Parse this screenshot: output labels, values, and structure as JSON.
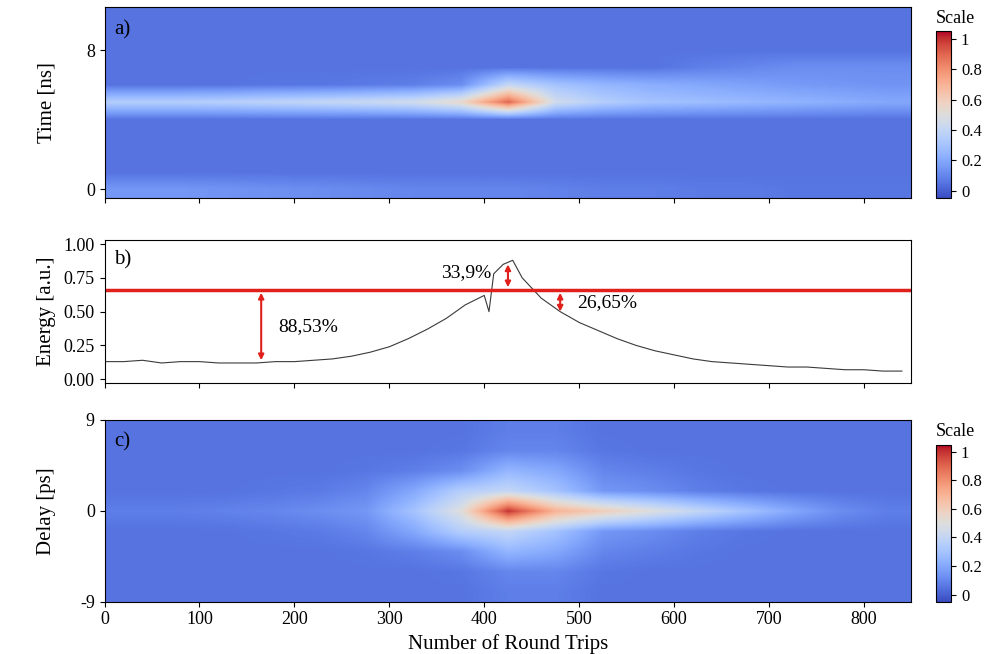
{
  "chart_data": [
    {
      "type": "heatmap",
      "label": "a)",
      "y_label": "Time [ns]",
      "x": [
        25,
        75,
        125,
        175,
        225,
        275,
        325,
        375,
        425,
        475,
        525,
        575,
        625,
        675,
        725,
        775,
        825
      ],
      "y": [
        0,
        1,
        2,
        3,
        4,
        5,
        6,
        7,
        8,
        9,
        10
      ],
      "cells": [
        [
          0.15,
          0.15,
          0.14,
          0.13,
          0.12,
          0.11,
          0.1,
          0.1,
          0.1,
          0.09,
          0.08,
          0.08,
          0.07,
          0.07,
          0.06,
          0.06,
          0.06
        ],
        [
          0.05,
          0.05,
          0.05,
          0.05,
          0.05,
          0.05,
          0.05,
          0.05,
          0.05,
          0.05,
          0.05,
          0.05,
          0.05,
          0.05,
          0.05,
          0.05,
          0.05
        ],
        [
          0.05,
          0.05,
          0.05,
          0.05,
          0.05,
          0.05,
          0.05,
          0.05,
          0.05,
          0.05,
          0.05,
          0.05,
          0.05,
          0.05,
          0.05,
          0.05,
          0.05
        ],
        [
          0.05,
          0.05,
          0.05,
          0.05,
          0.05,
          0.05,
          0.05,
          0.05,
          0.05,
          0.05,
          0.05,
          0.05,
          0.05,
          0.05,
          0.05,
          0.05,
          0.05
        ],
        [
          0.05,
          0.05,
          0.05,
          0.05,
          0.05,
          0.05,
          0.05,
          0.05,
          0.05,
          0.05,
          0.05,
          0.05,
          0.05,
          0.05,
          0.05,
          0.05,
          0.05
        ],
        [
          0.35,
          0.35,
          0.36,
          0.38,
          0.4,
          0.42,
          0.45,
          0.55,
          0.9,
          0.45,
          0.35,
          0.3,
          0.28,
          0.26,
          0.24,
          0.22,
          0.2
        ],
        [
          0.05,
          0.05,
          0.05,
          0.06,
          0.06,
          0.07,
          0.08,
          0.12,
          0.4,
          0.3,
          0.25,
          0.22,
          0.2,
          0.18,
          0.16,
          0.15,
          0.14
        ],
        [
          0.05,
          0.05,
          0.05,
          0.05,
          0.05,
          0.05,
          0.05,
          0.05,
          0.05,
          0.05,
          0.05,
          0.05,
          0.08,
          0.1,
          0.12,
          0.12,
          0.12
        ],
        [
          0.05,
          0.05,
          0.05,
          0.05,
          0.05,
          0.05,
          0.05,
          0.05,
          0.05,
          0.05,
          0.05,
          0.05,
          0.05,
          0.05,
          0.05,
          0.05,
          0.05
        ],
        [
          0.05,
          0.05,
          0.05,
          0.05,
          0.05,
          0.05,
          0.05,
          0.05,
          0.05,
          0.05,
          0.05,
          0.05,
          0.05,
          0.05,
          0.05,
          0.05,
          0.05
        ],
        [
          0.05,
          0.05,
          0.05,
          0.05,
          0.05,
          0.05,
          0.05,
          0.05,
          0.05,
          0.05,
          0.05,
          0.05,
          0.05,
          0.05,
          0.05,
          0.05,
          0.05
        ]
      ],
      "xlim": [
        0,
        850
      ],
      "ylim": [
        -0.5,
        10.5
      ],
      "xticks": [
        0,
        100,
        200,
        300,
        400,
        500,
        600,
        700,
        800
      ],
      "yticks": [
        0,
        8
      ],
      "tick_labels": "y",
      "clim": [
        -0.05,
        1.05
      ],
      "colorbar_ticks": [
        0,
        0.2,
        0.4,
        0.6,
        0.8,
        1
      ],
      "colorbar_label": "Scale"
    },
    {
      "type": "line",
      "label": "b)",
      "y_label": "Energy [a.u.]",
      "color": "#3a3a3a",
      "x": [
        0,
        20,
        40,
        60,
        80,
        100,
        120,
        140,
        160,
        180,
        200,
        220,
        240,
        260,
        280,
        300,
        320,
        340,
        360,
        380,
        400,
        405,
        410,
        420,
        430,
        440,
        460,
        480,
        500,
        520,
        540,
        560,
        580,
        600,
        620,
        640,
        660,
        680,
        700,
        720,
        740,
        760,
        780,
        800,
        820,
        840
      ],
      "values": [
        0.13,
        0.13,
        0.14,
        0.12,
        0.13,
        0.13,
        0.12,
        0.12,
        0.12,
        0.13,
        0.13,
        0.14,
        0.15,
        0.17,
        0.2,
        0.24,
        0.3,
        0.37,
        0.45,
        0.55,
        0.62,
        0.5,
        0.78,
        0.85,
        0.88,
        0.75,
        0.6,
        0.5,
        0.42,
        0.36,
        0.3,
        0.25,
        0.21,
        0.18,
        0.15,
        0.13,
        0.12,
        0.11,
        0.1,
        0.09,
        0.09,
        0.08,
        0.07,
        0.07,
        0.06,
        0.06
      ],
      "reference_line": {
        "value": 0.66,
        "color": "#e0201b"
      },
      "annotations": [
        {
          "text": "88,53%",
          "x": 165,
          "y": [
            0.66,
            0.12
          ]
        },
        {
          "text": "33,9%",
          "x": 425,
          "y": [
            0.87,
            0.66
          ]
        },
        {
          "text": "26,65%",
          "x": 480,
          "y": [
            0.66,
            0.48
          ]
        }
      ],
      "xlim": [
        0,
        850
      ],
      "ylim": [
        -0.03,
        1.03
      ],
      "xticks": [
        0,
        100,
        200,
        300,
        400,
        500,
        600,
        700,
        800
      ],
      "yticks": [
        {
          "value": 0,
          "label": "0.00"
        },
        {
          "value": 0.25,
          "label": "0.25"
        },
        {
          "value": 0.5,
          "label": "0.50"
        },
        {
          "value": 0.75,
          "label": "0.75"
        },
        {
          "value": 1,
          "label": "1.00"
        }
      ],
      "tick_labels": "y"
    },
    {
      "type": "heatmap",
      "label": "c)",
      "y_label": "Delay [ps]",
      "x_label": "Number of Round Trips",
      "x": [
        25,
        75,
        125,
        175,
        225,
        275,
        325,
        375,
        425,
        475,
        525,
        575,
        625,
        675,
        725,
        775,
        825
      ],
      "y": [
        -8,
        -6,
        -4,
        -2,
        0,
        2,
        4,
        6,
        8
      ],
      "cells": [
        [
          0.05,
          0.05,
          0.05,
          0.05,
          0.05,
          0.05,
          0.05,
          0.05,
          0.08,
          0.08,
          0.05,
          0.05,
          0.05,
          0.05,
          0.05,
          0.05,
          0.05
        ],
        [
          0.05,
          0.05,
          0.05,
          0.05,
          0.05,
          0.05,
          0.05,
          0.06,
          0.1,
          0.1,
          0.06,
          0.05,
          0.05,
          0.05,
          0.05,
          0.05,
          0.05
        ],
        [
          0.05,
          0.05,
          0.05,
          0.05,
          0.05,
          0.06,
          0.08,
          0.12,
          0.25,
          0.2,
          0.1,
          0.08,
          0.06,
          0.05,
          0.05,
          0.05,
          0.05
        ],
        [
          0.05,
          0.05,
          0.05,
          0.06,
          0.07,
          0.1,
          0.2,
          0.35,
          0.4,
          0.3,
          0.15,
          0.12,
          0.08,
          0.06,
          0.05,
          0.05,
          0.05
        ],
        [
          0.08,
          0.08,
          0.09,
          0.1,
          0.12,
          0.15,
          0.3,
          0.5,
          1.0,
          0.7,
          0.6,
          0.5,
          0.4,
          0.3,
          0.2,
          0.12,
          0.08
        ],
        [
          0.05,
          0.05,
          0.05,
          0.06,
          0.07,
          0.1,
          0.2,
          0.35,
          0.4,
          0.3,
          0.15,
          0.12,
          0.08,
          0.06,
          0.05,
          0.05,
          0.05
        ],
        [
          0.05,
          0.05,
          0.05,
          0.05,
          0.05,
          0.06,
          0.08,
          0.12,
          0.25,
          0.2,
          0.1,
          0.08,
          0.06,
          0.05,
          0.05,
          0.05,
          0.05
        ],
        [
          0.05,
          0.05,
          0.05,
          0.05,
          0.05,
          0.05,
          0.05,
          0.06,
          0.1,
          0.1,
          0.06,
          0.05,
          0.05,
          0.05,
          0.05,
          0.05,
          0.05
        ],
        [
          0.05,
          0.05,
          0.05,
          0.05,
          0.05,
          0.05,
          0.05,
          0.05,
          0.08,
          0.08,
          0.05,
          0.05,
          0.05,
          0.05,
          0.05,
          0.05,
          0.05
        ]
      ],
      "xlim": [
        0,
        850
      ],
      "ylim": [
        -9,
        9
      ],
      "xticks": [
        0,
        100,
        200,
        300,
        400,
        500,
        600,
        700,
        800
      ],
      "yticks": [
        -9,
        0,
        9
      ],
      "tick_labels": true,
      "clim": [
        -0.05,
        1.05
      ],
      "colorbar_ticks": [
        0,
        0.2,
        0.4,
        0.6,
        0.8,
        1
      ],
      "colorbar_label": "Scale"
    }
  ]
}
